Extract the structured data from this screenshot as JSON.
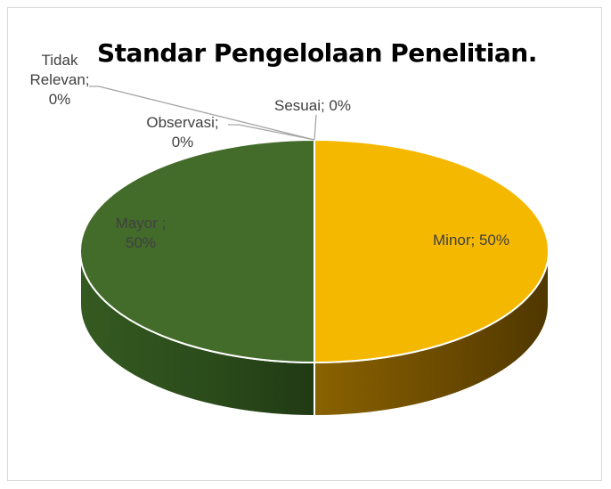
{
  "chart_data": {
    "type": "pie",
    "title": "Standar Pengelolaan Penelitian.",
    "slices": [
      {
        "label": "Minor",
        "display": "Minor; 50%",
        "value": 50,
        "color": "#f5b800"
      },
      {
        "label": "Mayor",
        "display": [
          "Mayor ;",
          "50%"
        ],
        "value": 50,
        "color": "#436b2a"
      },
      {
        "label": "Tidak Relevan",
        "display": [
          "Tidak",
          "Relevan;",
          "0%"
        ],
        "value": 0
      },
      {
        "label": "Observasi",
        "display": [
          "Observasi;",
          "0%"
        ],
        "value": 0
      },
      {
        "label": "Sesuai",
        "display": "Sesuai; 0%",
        "value": 0
      }
    ],
    "legend": "none",
    "style": "3d-pie"
  }
}
